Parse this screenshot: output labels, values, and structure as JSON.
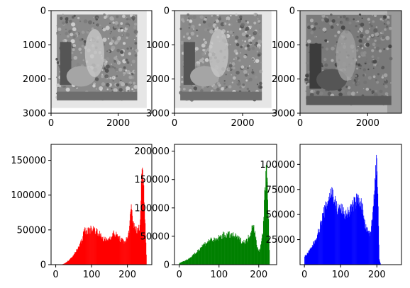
{
  "chart_data": [
    {
      "type": "image",
      "channel": "red-as-grayscale",
      "xlim": [
        0,
        3000
      ],
      "ylim": [
        3000,
        0
      ],
      "xticks": [
        "0",
        "2000"
      ],
      "yticks": [
        "0",
        "1000",
        "2000",
        "3000"
      ],
      "image_extent": [
        0,
        2850,
        0,
        2850
      ]
    },
    {
      "type": "image",
      "channel": "green-as-grayscale",
      "xlim": [
        0,
        3000
      ],
      "ylim": [
        3000,
        0
      ],
      "xticks": [
        "0",
        "2000"
      ],
      "yticks": [
        "0",
        "1000",
        "2000",
        "3000"
      ],
      "image_extent": [
        0,
        2850,
        0,
        2850
      ]
    },
    {
      "type": "image",
      "channel": "blue-as-grayscale",
      "xlim": [
        0,
        3000
      ],
      "ylim": [
        3000,
        0
      ],
      "xticks": [
        "0",
        "2000"
      ],
      "yticks": [
        "0",
        "1000",
        "2000",
        "3000"
      ],
      "image_extent": [
        0,
        3000,
        0,
        3000
      ]
    },
    {
      "type": "histogram",
      "color": "#ff0000",
      "xlim": [
        -13,
        268
      ],
      "ylim": [
        0,
        173000
      ],
      "xticks": [
        "0",
        "100",
        "200"
      ],
      "yticks": [
        "0",
        "50000",
        "100000",
        "150000"
      ],
      "x": [
        15,
        25,
        40,
        55,
        70,
        80,
        90,
        100,
        110,
        120,
        130,
        140,
        150,
        160,
        170,
        180,
        190,
        200,
        205,
        210,
        215,
        220,
        225,
        230,
        235,
        240,
        243,
        246,
        250,
        253
      ],
      "values": [
        0,
        2000,
        8000,
        18000,
        32000,
        50000,
        48000,
        52000,
        50000,
        45000,
        38000,
        35000,
        38000,
        45000,
        42000,
        36000,
        33000,
        38000,
        55000,
        82000,
        60000,
        56000,
        48000,
        50000,
        60000,
        150000,
        120000,
        100000,
        45000,
        0
      ]
    },
    {
      "type": "histogram",
      "color": "#008000",
      "xlim": [
        -12,
        245
      ],
      "ylim": [
        0,
        212000
      ],
      "xticks": [
        "0",
        "100",
        "200"
      ],
      "yticks": [
        "0",
        "50000",
        "100000",
        "150000",
        "200000"
      ],
      "x": [
        0,
        10,
        20,
        30,
        40,
        50,
        60,
        70,
        80,
        90,
        100,
        110,
        120,
        130,
        140,
        150,
        160,
        170,
        180,
        185,
        190,
        195,
        200,
        205,
        210,
        215,
        218,
        221,
        224,
        227
      ],
      "values": [
        3000,
        6000,
        9000,
        14000,
        20000,
        28000,
        35000,
        40000,
        45000,
        42000,
        48000,
        52000,
        53000,
        52000,
        50000,
        45000,
        40000,
        42000,
        60000,
        75000,
        55000,
        30000,
        25000,
        35000,
        60000,
        135000,
        170000,
        140000,
        80000,
        0
      ]
    },
    {
      "type": "histogram",
      "color": "#0000ff",
      "xlim": [
        -12,
        268
      ],
      "ylim": [
        0,
        120000
      ],
      "xticks": [
        "0",
        "100",
        "200"
      ],
      "yticks": [
        "25000",
        "50000",
        "75000",
        "100000"
      ],
      "x": [
        0,
        10,
        20,
        30,
        40,
        50,
        60,
        70,
        75,
        80,
        90,
        100,
        110,
        120,
        130,
        140,
        150,
        160,
        165,
        170,
        180,
        185,
        190,
        195,
        198,
        200,
        203,
        206,
        210
      ],
      "values": [
        8000,
        12000,
        18000,
        25000,
        35000,
        48000,
        60000,
        70000,
        73000,
        68000,
        55000,
        57000,
        50000,
        52000,
        57000,
        63000,
        67000,
        55000,
        42000,
        35000,
        30000,
        40000,
        60000,
        95000,
        100000,
        90000,
        55000,
        5000,
        0
      ]
    }
  ]
}
